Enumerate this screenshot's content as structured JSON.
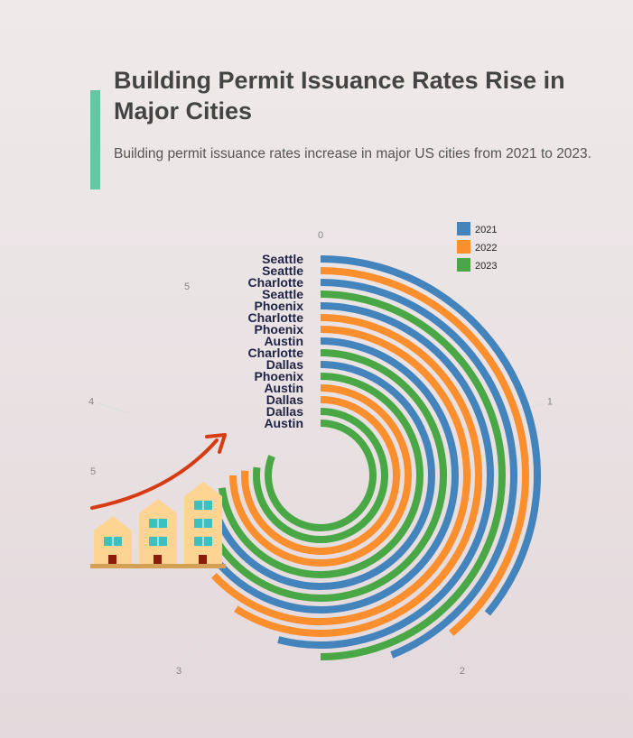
{
  "header": {
    "title": "Building Permit Issuance Rates Rise in Major Cities",
    "subtitle": "Building permit issuance rates increase in major US cities from 2021 to 2023."
  },
  "colors": {
    "accent": "#66c7a4",
    "series_2021": "#4384bd",
    "series_2022": "#fb8f2e",
    "series_2023": "#49a845",
    "arrow": "#d63b12",
    "building": "#fdd492",
    "window": "#3cc0c0",
    "door": "#8a1c08",
    "ground": "#d4a055"
  },
  "icons": [
    "rising-arrow-icon",
    "buildings-icon"
  ],
  "chart_data": {
    "type": "radial-bar",
    "axis_max": 5,
    "angular_ticks": [
      "0",
      "1",
      "2",
      "3",
      "4",
      "5"
    ],
    "radial_tick_labels": [
      "5",
      "5"
    ],
    "legend_placement": "top-right",
    "legend": [
      "2021",
      "2022",
      "2023"
    ],
    "bars": [
      {
        "city": "Seattle",
        "year": "2021",
        "value": 1.8
      },
      {
        "city": "Seattle",
        "year": "2022",
        "value": 1.95
      },
      {
        "city": "Charlotte",
        "year": "2021",
        "value": 2.2
      },
      {
        "city": "Seattle",
        "year": "2023",
        "value": 2.5
      },
      {
        "city": "Phoenix",
        "year": "2021",
        "value": 2.7
      },
      {
        "city": "Charlotte",
        "year": "2022",
        "value": 2.95
      },
      {
        "city": "Phoenix",
        "year": "2022",
        "value": 3.15
      },
      {
        "city": "Austin",
        "year": "2021",
        "value": 3.4
      },
      {
        "city": "Charlotte",
        "year": "2023",
        "value": 3.5
      },
      {
        "city": "Dallas",
        "year": "2021",
        "value": 3.55
      },
      {
        "city": "Phoenix",
        "year": "2023",
        "value": 3.65
      },
      {
        "city": "Austin",
        "year": "2022",
        "value": 3.75
      },
      {
        "city": "Dallas",
        "year": "2022",
        "value": 3.8
      },
      {
        "city": "Dallas",
        "year": "2023",
        "value": 3.85
      },
      {
        "city": "Austin",
        "year": "2023",
        "value": 4.05
      }
    ]
  }
}
